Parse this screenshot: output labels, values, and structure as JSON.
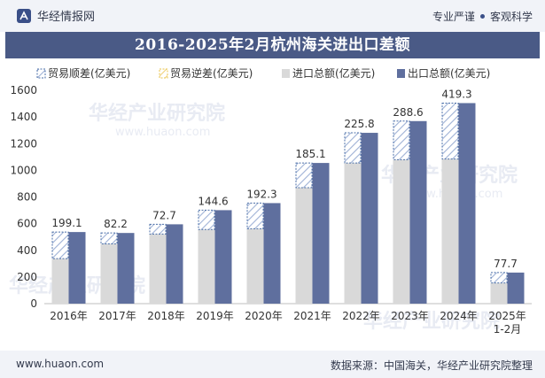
{
  "header": {
    "brand_name": "华经情报网",
    "tagline_left": "专业严谨",
    "tagline_right": "客观科学"
  },
  "title": "2016-2025年2月杭州海关进出口差额",
  "watermark": "华经产业研究院",
  "watermark_url": "www.huaon.com",
  "chart_data": {
    "type": "bar",
    "title": "2016-2025年2月杭州海关进出口差额",
    "categories": [
      "2016年",
      "2017年",
      "2018年",
      "2019年",
      "2020年",
      "2021年",
      "2022年",
      "2023年",
      "2024年",
      "2025年\n1-2月"
    ],
    "series": [
      {
        "name": "贸易顺差(亿美元)",
        "values": [
          199.1,
          82.2,
          72.7,
          144.6,
          192.3,
          185.1,
          225.8,
          288.6,
          419.3,
          77.7
        ]
      },
      {
        "name": "贸易逆差(亿美元)",
        "values": [
          0,
          0,
          0,
          0,
          0,
          0,
          0,
          0,
          0,
          0
        ]
      },
      {
        "name": "进口总额(亿美元)",
        "values": [
          338,
          448,
          522,
          556,
          562,
          870,
          1055,
          1080,
          1085,
          155
        ]
      },
      {
        "name": "出口总额(亿美元)",
        "values": [
          537,
          530,
          595,
          701,
          754,
          1055,
          1281,
          1369,
          1504,
          233
        ]
      }
    ],
    "ylim": [
      0,
      1600
    ],
    "yticks": [
      0,
      200,
      400,
      600,
      800,
      1000,
      1200,
      1400,
      1600
    ],
    "xlabel": "",
    "ylabel": "",
    "legend_position": "top",
    "colors": {
      "import": "#d9d9d9",
      "export": "#5f6f9e",
      "surplus_stroke": "#4b6fa8",
      "surplus_hatch": "#9fb2d6",
      "deficit_stroke": "#e8c34a"
    }
  },
  "footer": {
    "site": "www.huaon.com",
    "source": "数据来源：中国海关，华经产业研究院整理"
  }
}
